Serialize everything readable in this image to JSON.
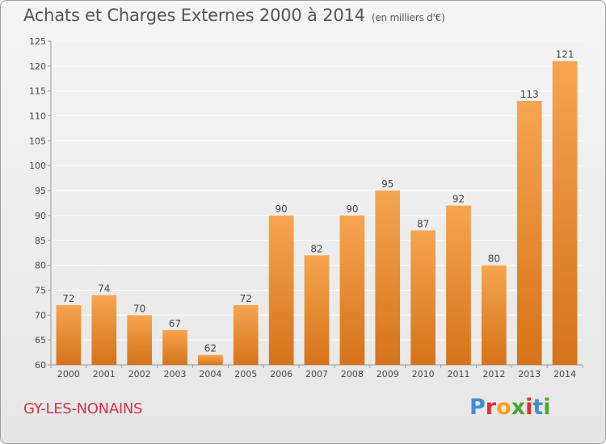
{
  "title": "Achats et Charges Externes 2000 à 2014",
  "unit_note": "(en milliers d'€)",
  "place_name": "GY-LES-NONAINS",
  "logo": {
    "text": "Proxiti",
    "letters": [
      {
        "ch": "P",
        "color": "#3d8fd6"
      },
      {
        "ch": "r",
        "color": "#e0302c"
      },
      {
        "ch": "o",
        "color": "#f4a21e"
      },
      {
        "ch": "x",
        "color": "#4da636"
      },
      {
        "ch": "i",
        "color": "#e0302c"
      },
      {
        "ch": "t",
        "color": "#3d8fd6"
      },
      {
        "ch": "i",
        "color": "#4da636"
      }
    ]
  },
  "colors": {
    "bar_top": "#f6a54f",
    "bar_bottom": "#d5731a",
    "grid": "#ffffff",
    "axis_text": "#444444"
  },
  "chart_data": {
    "type": "bar",
    "categories": [
      "2000",
      "2001",
      "2002",
      "2003",
      "2004",
      "2005",
      "2006",
      "2007",
      "2008",
      "2009",
      "2010",
      "2011",
      "2012",
      "2013",
      "2014"
    ],
    "values": [
      72,
      74,
      70,
      67,
      62,
      72,
      90,
      82,
      90,
      95,
      87,
      92,
      80,
      113,
      121
    ],
    "ylim": [
      60,
      125
    ],
    "yticks": [
      60,
      65,
      70,
      75,
      80,
      85,
      90,
      95,
      100,
      105,
      110,
      115,
      120,
      125
    ],
    "grid": true,
    "data_labels": true
  }
}
